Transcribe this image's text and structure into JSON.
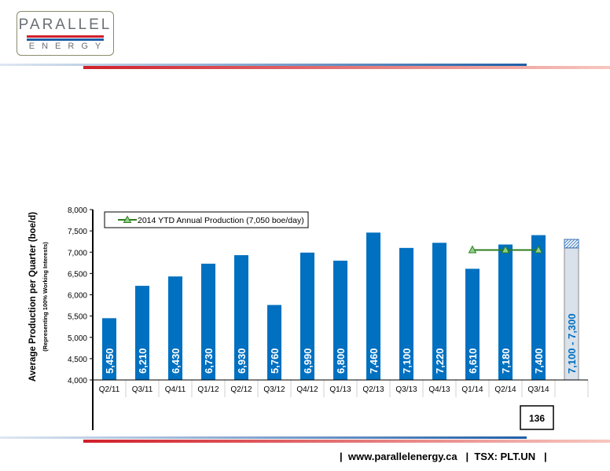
{
  "logo": {
    "top": "PARALLEL",
    "bottom": "ENERGY"
  },
  "footer": {
    "pipe_left": "|",
    "url": "www.parallelenergy.ca",
    "pipe_mid": "|",
    "ticker": "TSX: PLT.UN",
    "pipe_right": "|"
  },
  "page_number": "136",
  "colors": {
    "bar": "#0070c0",
    "ytd_line": "#2e7d1f",
    "ytd_marker_fill": "#8fd18a",
    "guidance_fill": "#d9e1ea",
    "guidance_hatch": "#5b8fc9",
    "red": "#d0202b",
    "blue": "#1f5fa8"
  },
  "chart_data": {
    "type": "bar",
    "ylabel": "Average Production per Quarter (boe/d)",
    "ylabel_sub": "(Representing 100% Working Interests)",
    "ylim": [
      4000,
      8000
    ],
    "yticks": [
      "4,000",
      "4,500",
      "5,000",
      "5,500",
      "6,000",
      "6,500",
      "7,000",
      "7,500",
      "8,000"
    ],
    "ytick_values": [
      4000,
      4500,
      5000,
      5500,
      6000,
      6500,
      7000,
      7500,
      8000
    ],
    "categories": [
      "Q2/11",
      "Q3/11",
      "Q4/11",
      "Q1/12",
      "Q2/12",
      "Q3/12",
      "Q4/12",
      "Q1/13",
      "Q2/13",
      "Q3/13",
      "Q4/13",
      "Q1/14",
      "Q2/14",
      "Q3/14",
      ""
    ],
    "values": [
      5450,
      6210,
      6430,
      6730,
      6930,
      5760,
      6990,
      6800,
      7460,
      7100,
      7220,
      6610,
      7180,
      7400
    ],
    "labels": [
      "5,450",
      "6,210",
      "6,430",
      "6,730",
      "6,930",
      "5,760",
      "6,990",
      "6,800",
      "7,460",
      "7,100",
      "7,220",
      "6,610",
      "7,180",
      "7,400"
    ],
    "guidance": {
      "low": 7100,
      "high": 7300,
      "label": "7,100 - 7,300"
    },
    "ytd_line": {
      "name": "2014 YTD Annual Production (7,050 boe/day)",
      "value": 7050,
      "categories": [
        "Q1/14",
        "Q2/14",
        "Q3/14"
      ]
    },
    "legend_position": "top-left",
    "grid": false
  }
}
